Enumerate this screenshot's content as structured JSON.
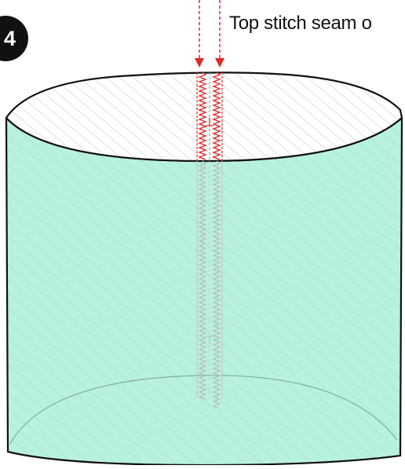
{
  "step": {
    "number": "4"
  },
  "instruction": {
    "text": "Top stitch seam o"
  },
  "colors": {
    "fabric_fill": "#b9f2dc",
    "fabric_hatch": "#9cdcc4",
    "inside_hatch": "#cfcfcf",
    "outline": "#111111",
    "stitch_active": "#e02b2b",
    "stitch_inactive": "#b8bfbc",
    "badge": "#111111"
  },
  "icons": {
    "arrow_left": "arrow-down-icon",
    "arrow_right": "arrow-down-icon"
  }
}
